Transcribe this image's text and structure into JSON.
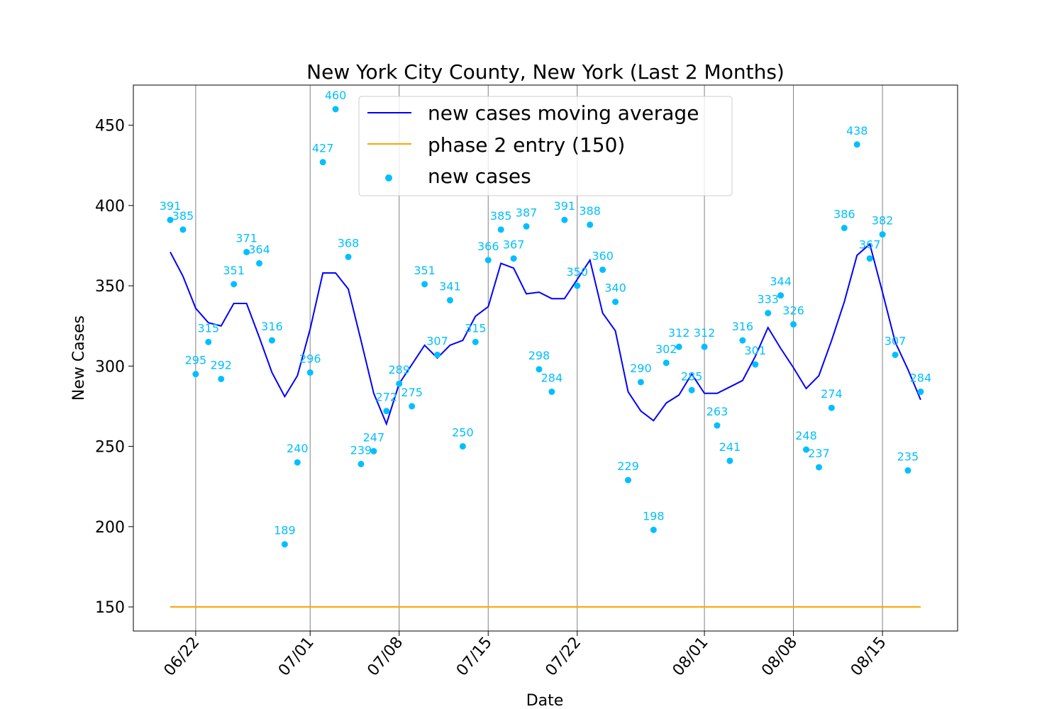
{
  "chart_data": {
    "type": "line",
    "title": "New York City County, New York (Last 2 Months)",
    "xlabel": "Date",
    "ylabel": "New Cases",
    "ylim": [
      135,
      475
    ],
    "yticks": [
      150,
      200,
      250,
      300,
      350,
      400,
      450
    ],
    "x_start": "06/20",
    "x": [
      "06/20",
      "06/21",
      "06/22",
      "06/23",
      "06/24",
      "06/25",
      "06/26",
      "06/27",
      "06/28",
      "06/29",
      "06/30",
      "07/01",
      "07/02",
      "07/03",
      "07/04",
      "07/05",
      "07/06",
      "07/07",
      "07/08",
      "07/09",
      "07/10",
      "07/11",
      "07/12",
      "07/13",
      "07/14",
      "07/15",
      "07/16",
      "07/17",
      "07/18",
      "07/19",
      "07/20",
      "07/21",
      "07/22",
      "07/23",
      "07/24",
      "07/25",
      "07/26",
      "07/27",
      "07/28",
      "07/29",
      "07/30",
      "07/31",
      "08/01",
      "08/02",
      "08/03",
      "08/04",
      "08/05",
      "08/06",
      "08/07",
      "08/08",
      "08/09",
      "08/10",
      "08/11",
      "08/12",
      "08/13",
      "08/14",
      "08/15",
      "08/16",
      "08/17",
      "08/18"
    ],
    "xticks": [
      "06/22",
      "07/01",
      "07/08",
      "07/15",
      "07/22",
      "08/01",
      "08/08",
      "08/15"
    ],
    "grid": "vertical lines at x ticks",
    "legend_position": "top-center",
    "series": [
      {
        "name": "new cases moving average",
        "kind": "line",
        "color": "#0000ff",
        "values": [
          371,
          356,
          336,
          327,
          325,
          339,
          339,
          318,
          296,
          281,
          294,
          323,
          358,
          358,
          348,
          316,
          283,
          264,
          289,
          301,
          313,
          305,
          313,
          316,
          331,
          337,
          364,
          361,
          345,
          346,
          342,
          342,
          354,
          366,
          333,
          322,
          284,
          272,
          266,
          277,
          282,
          295,
          283,
          283,
          287,
          291,
          306,
          324,
          311,
          299,
          286,
          294,
          316,
          340,
          369,
          376,
          346,
          315,
          298,
          279
        ]
      },
      {
        "name": "phase 2 entry (150)",
        "kind": "line",
        "color": "#ffa500",
        "values": [
          150,
          150,
          150,
          150,
          150,
          150,
          150,
          150,
          150,
          150,
          150,
          150,
          150,
          150,
          150,
          150,
          150,
          150,
          150,
          150,
          150,
          150,
          150,
          150,
          150,
          150,
          150,
          150,
          150,
          150,
          150,
          150,
          150,
          150,
          150,
          150,
          150,
          150,
          150,
          150,
          150,
          150,
          150,
          150,
          150,
          150,
          150,
          150,
          150,
          150,
          150,
          150,
          150,
          150,
          150,
          150,
          150,
          150,
          150,
          150
        ]
      },
      {
        "name": "new cases",
        "kind": "scatter",
        "color": "#00bfff",
        "values": [
          391,
          385,
          295,
          315,
          292,
          351,
          371,
          364,
          316,
          189,
          240,
          296,
          427,
          460,
          368,
          239,
          247,
          272,
          289,
          275,
          351,
          307,
          341,
          250,
          315,
          366,
          385,
          367,
          387,
          298,
          284,
          391,
          350,
          388,
          360,
          340,
          229,
          290,
          198,
          302,
          312,
          285,
          312,
          263,
          241,
          316,
          301,
          333,
          344,
          326,
          248,
          237,
          274,
          386,
          438,
          367,
          382,
          307,
          235,
          284
        ]
      }
    ]
  }
}
